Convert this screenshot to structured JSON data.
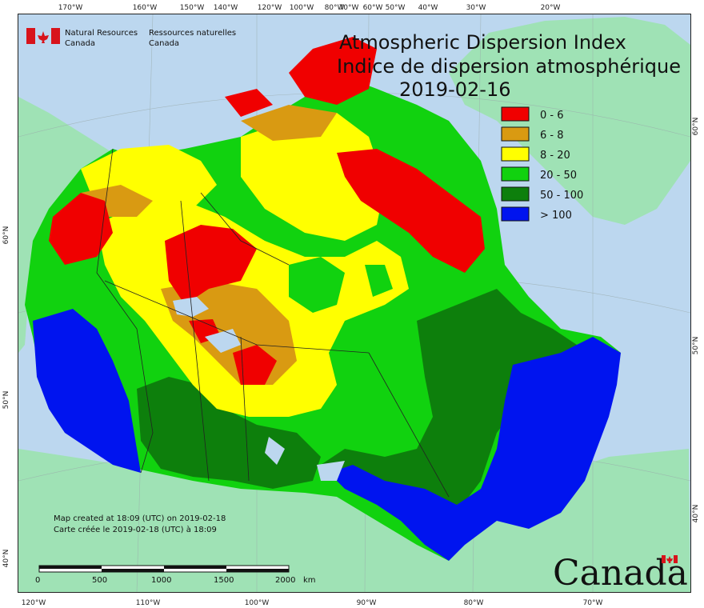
{
  "ministry": {
    "en_line1": "Natural Resources",
    "en_line2": "Canada",
    "fr_line1": "Ressources naturelles",
    "fr_line2": "Canada"
  },
  "title": {
    "en": "Atmospheric Dispersion Index",
    "fr": "Indice de dispersion atmosphérique",
    "date": "2019-02-16"
  },
  "legend": [
    {
      "label": "0 - 6",
      "color": "#f00000"
    },
    {
      "label": "6 - 8",
      "color": "#d99a12"
    },
    {
      "label": "8 - 20",
      "color": "#ffff00"
    },
    {
      "label": "20 - 50",
      "color": "#11d20f"
    },
    {
      "label": "50 - 100",
      "color": "#0d7f0c"
    },
    {
      "label": "> 100",
      "color": "#0014ef"
    }
  ],
  "footer": {
    "created_en": "Map created at 18:09 (UTC) on 2019-02-18",
    "created_fr": "Carte créée le 2019-02-18 (UTC) à 18:09"
  },
  "scale": {
    "ticks": [
      "0",
      "500",
      "1000",
      "1500",
      "2000"
    ],
    "unit": "km"
  },
  "wordmark": "Canada",
  "axes": {
    "top": [
      "170°W",
      "160°W",
      "150°W",
      "140°W",
      "120°W",
      "100°W",
      "80°W",
      "70°W",
      "60°W",
      "50°W",
      "40°W",
      "30°W",
      "20°W"
    ],
    "bottom": [
      "120°W",
      "110°W",
      "100°W",
      "90°W",
      "80°W",
      "70°W"
    ],
    "left": [
      "60°N",
      "50°N",
      "40°N"
    ],
    "right": [
      "60°N",
      "50°N",
      "40°N"
    ]
  },
  "colors": {
    "ocean": "#bcd7ef",
    "foreign_land": "#9fe2b5",
    "flag_red": "#d8131b"
  }
}
